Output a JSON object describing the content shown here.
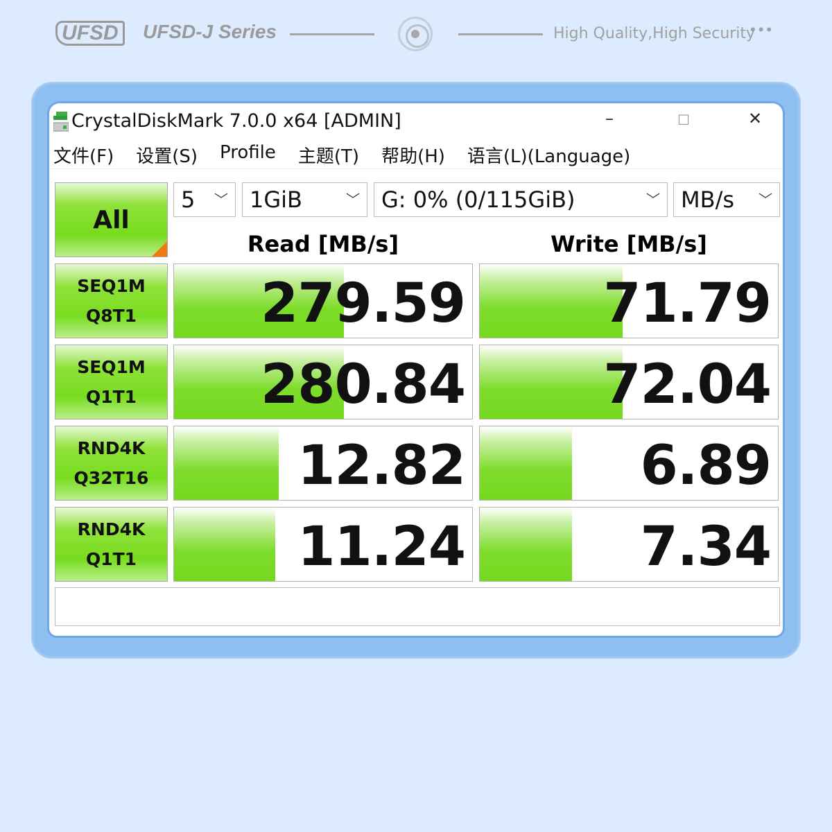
{
  "banner": {
    "logo": "UFSD",
    "series": "UFSD-J Series",
    "tagline": "High Quality,High Security",
    "dots": "•••"
  },
  "window": {
    "title": "CrystalDiskMark 7.0.0 x64 [ADMIN]",
    "minimize": "–",
    "maximize": "☐",
    "close": "✕"
  },
  "menu": [
    "文件(F)",
    "设置(S)",
    "Profile",
    "主题(T)",
    "帮助(H)",
    "语言(L)(Language)"
  ],
  "controls": {
    "all_label": "All",
    "count": "5",
    "size": "1GiB",
    "drive": "G: 0% (0/115GiB)",
    "unit": "MB/s"
  },
  "headers": {
    "read": "Read [MB/s]",
    "write": "Write [MB/s]"
  },
  "rows": [
    {
      "l1": "SEQ1M",
      "l2": "Q8T1",
      "read": "279.59",
      "write": "71.79",
      "read_fill": 0.57,
      "write_fill": 0.48
    },
    {
      "l1": "SEQ1M",
      "l2": "Q1T1",
      "read": "280.84",
      "write": "72.04",
      "read_fill": 0.57,
      "write_fill": 0.48
    },
    {
      "l1": "RND4K",
      "l2": "Q32T16",
      "read": "12.82",
      "write": "6.89",
      "read_fill": 0.35,
      "write_fill": 0.31
    },
    {
      "l1": "RND4K",
      "l2": "Q1T1",
      "read": "11.24",
      "write": "7.34",
      "read_fill": 0.34,
      "write_fill": 0.31
    }
  ],
  "status": ""
}
